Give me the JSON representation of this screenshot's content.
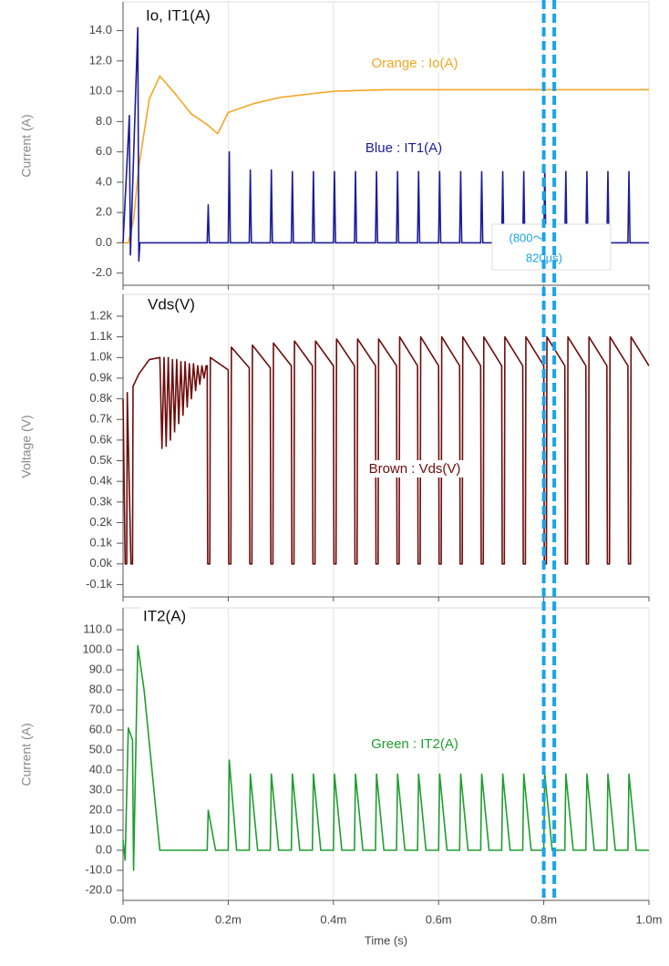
{
  "chart_data": [
    {
      "type": "line",
      "title": "Io, IT1(A)",
      "ylabel": "Current (A)",
      "xlim": [
        0,
        0.001
      ],
      "ylim": [
        -2.8,
        15.9
      ],
      "grid": true,
      "yticks": [
        {
          "value": 14,
          "label": "14.0"
        },
        {
          "value": 12,
          "label": "12.0"
        },
        {
          "value": 10,
          "label": "10.0"
        },
        {
          "value": 8,
          "label": "8.0"
        },
        {
          "value": 6,
          "label": "6.0"
        },
        {
          "value": 4,
          "label": "4.0"
        },
        {
          "value": 2,
          "label": "2.0"
        },
        {
          "value": 0,
          "label": "0.0"
        },
        {
          "value": -2,
          "label": "-2.0"
        }
      ],
      "annotation": {
        "text": [
          "(800～",
          "820μs)"
        ],
        "x": [
          0.0008,
          0.00082
        ],
        "color": "#1aa3e8"
      },
      "series": [
        {
          "name": "Orange : Io(A)",
          "color": "#f5a623",
          "x": [
            0,
            1e-05,
            2e-05,
            3e-05,
            5e-05,
            7e-05,
            0.0001,
            0.00013,
            0.00016,
            0.00018,
            0.0002,
            0.00025,
            0.0003,
            0.0004,
            0.0005,
            0.0006,
            0.0007,
            0.0008,
            0.0009,
            0.001
          ],
          "values": [
            0,
            0,
            1.5,
            5,
            9.5,
            11,
            9.8,
            8.5,
            7.8,
            7.2,
            8.6,
            9.2,
            9.6,
            10,
            10.1,
            10.1,
            10.1,
            10.1,
            10.1,
            10.1
          ]
        },
        {
          "name": "Blue : IT1(A)",
          "color": "#1c1c9c",
          "x": [
            0,
            1.2e-05,
            1.4e-05,
            2.8e-05,
            3e-05,
            3.2e-05,
            0.00016,
            0.000162,
            0.000164,
            0.0002,
            0.000202,
            0.000204,
            0.00024,
            0.000242,
            0.000244,
            0.00028,
            0.000282,
            0.000284,
            0.00032,
            0.000322,
            0.000324,
            0.00036,
            0.000362,
            0.000364,
            0.0004,
            0.000402,
            0.000404,
            0.00044,
            0.000442,
            0.000444,
            0.00048,
            0.000482,
            0.000484,
            0.00052,
            0.000522,
            0.000524,
            0.00056,
            0.000562,
            0.000564,
            0.0006,
            0.000602,
            0.000604,
            0.00064,
            0.000642,
            0.000644,
            0.00068,
            0.000682,
            0.000684,
            0.00072,
            0.000722,
            0.000724,
            0.00076,
            0.000762,
            0.000764,
            0.0008,
            0.000802,
            0.000804,
            0.00084,
            0.000842,
            0.000844,
            0.00088,
            0.000882,
            0.000884,
            0.00092,
            0.000922,
            0.000924,
            0.00096,
            0.000962,
            0.000964,
            0.001
          ],
          "values": [
            0,
            8.4,
            -0.8,
            14.2,
            -1.2,
            0,
            0,
            2.5,
            0,
            0,
            6,
            0,
            0,
            4.8,
            0,
            0,
            4.8,
            0,
            0,
            4.7,
            0,
            0,
            4.7,
            0,
            0,
            4.7,
            0,
            0,
            4.7,
            0,
            0,
            4.7,
            0,
            0,
            4.7,
            0,
            0,
            4.7,
            0,
            0,
            4.7,
            0,
            0,
            4.7,
            0,
            0,
            4.7,
            0,
            0,
            4.7,
            0,
            0,
            4.7,
            0,
            0,
            4.7,
            0,
            0,
            4.7,
            0,
            0,
            4.7,
            0,
            0,
            4.7,
            0,
            0,
            4.7,
            0,
            0
          ]
        }
      ]
    },
    {
      "type": "line",
      "title": "Vds(V)",
      "ylabel": "Voltage (V)",
      "xlim": [
        0,
        0.001
      ],
      "ylim": [
        -160,
        1306
      ],
      "grid": true,
      "yticks": [
        {
          "value": 1200,
          "label": "1.2k"
        },
        {
          "value": 1100,
          "label": "1.1k"
        },
        {
          "value": 1000,
          "label": "1.0k"
        },
        {
          "value": 900,
          "label": "0.9k"
        },
        {
          "value": 800,
          "label": "0.8k"
        },
        {
          "value": 700,
          "label": "0.7k"
        },
        {
          "value": 600,
          "label": "0.6k"
        },
        {
          "value": 500,
          "label": "0.5k"
        },
        {
          "value": 400,
          "label": "0.4k"
        },
        {
          "value": 300,
          "label": "0.3k"
        },
        {
          "value": 200,
          "label": "0.2k"
        },
        {
          "value": 100,
          "label": "0.1k"
        },
        {
          "value": 0,
          "label": "0.0k"
        },
        {
          "value": -100,
          "label": "-0.1k"
        }
      ],
      "series": [
        {
          "name": "Brown : Vds(V)",
          "color": "#6e0c0c",
          "x": [
            0,
            4e-06,
            7e-06,
            8e-06,
            1.5e-05,
            1.8e-05,
            1.9e-05,
            3e-05,
            5e-05,
            7e-05,
            7.4e-05,
            7.8e-05,
            8.2e-05,
            8.6e-05,
            9e-05,
            9.4e-05,
            9.8e-05,
            0.000102,
            0.000106,
            0.00011,
            0.000114,
            0.000118,
            0.000122,
            0.000126,
            0.00013,
            0.000134,
            0.000138,
            0.000142,
            0.000146,
            0.00015,
            0.000154,
            0.000158,
            0.00016,
            0.000161,
            0.000165,
            0.000166,
            0.0002,
            0.000201,
            0.000205,
            0.000206,
            0.00024,
            0.000241,
            0.000245,
            0.000246,
            0.00028,
            0.000281,
            0.000285,
            0.000286,
            0.00032,
            0.000321,
            0.000325,
            0.000326,
            0.00036,
            0.000361,
            0.000365,
            0.000366,
            0.0004,
            0.000401,
            0.000405,
            0.000406,
            0.00044,
            0.000441,
            0.000445,
            0.000446,
            0.00048,
            0.000481,
            0.000485,
            0.000486,
            0.00052,
            0.000521,
            0.000525,
            0.000526,
            0.00056,
            0.000561,
            0.000565,
            0.000566,
            0.0006,
            0.000601,
            0.000605,
            0.000606,
            0.00064,
            0.000641,
            0.000645,
            0.000646,
            0.00068,
            0.000681,
            0.000685,
            0.000686,
            0.00072,
            0.000721,
            0.000725,
            0.000726,
            0.00076,
            0.000761,
            0.000765,
            0.000766,
            0.0008,
            0.000801,
            0.000805,
            0.000806,
            0.00084,
            0.000841,
            0.000845,
            0.000846,
            0.00088,
            0.000881,
            0.000885,
            0.000886,
            0.00092,
            0.000921,
            0.000925,
            0.000926,
            0.00096,
            0.000961,
            0.000965,
            0.000966,
            0.001
          ],
          "values": [
            800,
            0,
            0,
            830,
            0,
            0,
            860,
            920,
            990,
            1000,
            560,
            1000,
            570,
            1000,
            600,
            990,
            640,
            990,
            680,
            980,
            720,
            980,
            760,
            970,
            800,
            970,
            840,
            960,
            870,
            960,
            900,
            960,
            960,
            0,
            0,
            1000,
            940,
            0,
            0,
            1050,
            950,
            0,
            0,
            1060,
            950,
            0,
            0,
            1070,
            960,
            0,
            0,
            1080,
            960,
            0,
            0,
            1080,
            960,
            0,
            0,
            1090,
            960,
            0,
            0,
            1090,
            960,
            0,
            0,
            1090,
            960,
            0,
            0,
            1100,
            960,
            0,
            0,
            1100,
            960,
            0,
            0,
            1100,
            960,
            0,
            0,
            1100,
            960,
            0,
            0,
            1100,
            960,
            0,
            0,
            1100,
            960,
            0,
            0,
            1100,
            960,
            0,
            0,
            1100,
            960,
            0,
            0,
            1100,
            960,
            0,
            0,
            1100,
            960,
            0,
            0,
            1100,
            960,
            0,
            0,
            1100,
            960
          ]
        }
      ]
    },
    {
      "type": "line",
      "title": "IT2(A)",
      "ylabel": "Current (A)",
      "xlabel": "Time (s)",
      "xlim": [
        0,
        0.001
      ],
      "ylim": [
        -25,
        120.9
      ],
      "grid": true,
      "xticks": [
        {
          "value": 0,
          "label": "0.0m"
        },
        {
          "value": 0.0002,
          "label": "0.2m"
        },
        {
          "value": 0.0004,
          "label": "0.4m"
        },
        {
          "value": 0.0006,
          "label": "0.6m"
        },
        {
          "value": 0.0008,
          "label": "0.8m"
        },
        {
          "value": 0.001,
          "label": "1.0m"
        }
      ],
      "yticks": [
        {
          "value": 110,
          "label": "110.0"
        },
        {
          "value": 100,
          "label": "100.0"
        },
        {
          "value": 90,
          "label": "90.0"
        },
        {
          "value": 80,
          "label": "80.0"
        },
        {
          "value": 70,
          "label": "70.0"
        },
        {
          "value": 60,
          "label": "60.0"
        },
        {
          "value": 50,
          "label": "50.0"
        },
        {
          "value": 40,
          "label": "40.0"
        },
        {
          "value": 30,
          "label": "30.0"
        },
        {
          "value": 20,
          "label": "20.0"
        },
        {
          "value": 10,
          "label": "10.0"
        },
        {
          "value": 0,
          "label": "0.0"
        },
        {
          "value": -10,
          "label": "-10.0"
        },
        {
          "value": -20,
          "label": "-20.0"
        }
      ],
      "series": [
        {
          "name": "Green : IT2(A)",
          "color": "#1f9e2f",
          "x": [
            0,
            4e-06,
            1e-05,
            1.8e-05,
            2e-05,
            2.8e-05,
            4e-05,
            7e-05,
            0.00016,
            0.000162,
            0.000176,
            0.0002,
            0.000202,
            0.000216,
            0.00024,
            0.000242,
            0.000256,
            0.00028,
            0.000282,
            0.000296,
            0.00032,
            0.000322,
            0.000336,
            0.00036,
            0.000362,
            0.000376,
            0.0004,
            0.000402,
            0.000416,
            0.00044,
            0.000442,
            0.000456,
            0.00048,
            0.000482,
            0.000496,
            0.00052,
            0.000522,
            0.000536,
            0.00056,
            0.000562,
            0.000576,
            0.0006,
            0.000602,
            0.000616,
            0.00064,
            0.000642,
            0.000656,
            0.00068,
            0.000682,
            0.000696,
            0.00072,
            0.000722,
            0.000736,
            0.00076,
            0.000762,
            0.000776,
            0.0008,
            0.000802,
            0.000816,
            0.00084,
            0.000842,
            0.000856,
            0.00088,
            0.000882,
            0.000896,
            0.00092,
            0.000922,
            0.000936,
            0.00096,
            0.000962,
            0.000976,
            0.001
          ],
          "values": [
            5,
            -5,
            61,
            55,
            -10,
            102,
            80,
            0,
            0,
            20,
            0,
            0,
            45,
            0,
            0,
            38,
            0,
            0,
            38,
            0,
            0,
            38,
            0,
            0,
            38,
            0,
            0,
            38,
            0,
            0,
            38,
            0,
            0,
            38,
            0,
            0,
            38,
            0,
            0,
            38,
            0,
            0,
            38,
            0,
            0,
            38,
            0,
            0,
            38,
            0,
            0,
            38,
            0,
            0,
            38,
            0,
            0,
            38,
            0,
            0,
            38,
            0,
            0,
            38,
            0,
            0,
            38,
            0,
            0,
            38,
            0,
            0
          ]
        }
      ]
    }
  ]
}
